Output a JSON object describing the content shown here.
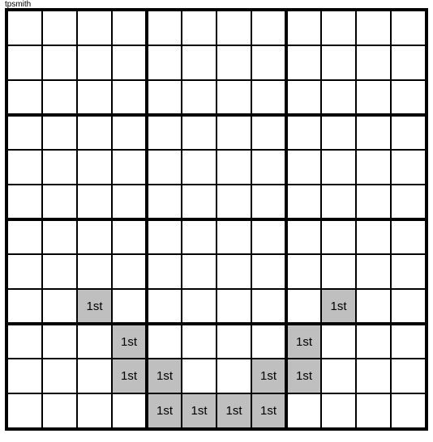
{
  "signature": "tpsmith",
  "grid": {
    "rows": 12,
    "cols": 12,
    "box_cols": 4,
    "box_rows": 3,
    "cell_size": 43,
    "border_color": "#000000",
    "shaded_color": "#bfbfbf",
    "background_color": "#ffffff",
    "cell_label": "1st",
    "label_fontsize": 15,
    "shaded_cells": [
      {
        "row": 8,
        "col": 2
      },
      {
        "row": 8,
        "col": 9
      },
      {
        "row": 9,
        "col": 3
      },
      {
        "row": 9,
        "col": 8
      },
      {
        "row": 10,
        "col": 3
      },
      {
        "row": 10,
        "col": 4
      },
      {
        "row": 10,
        "col": 7
      },
      {
        "row": 10,
        "col": 8
      },
      {
        "row": 11,
        "col": 4
      },
      {
        "row": 11,
        "col": 5
      },
      {
        "row": 11,
        "col": 6
      },
      {
        "row": 11,
        "col": 7
      }
    ]
  }
}
